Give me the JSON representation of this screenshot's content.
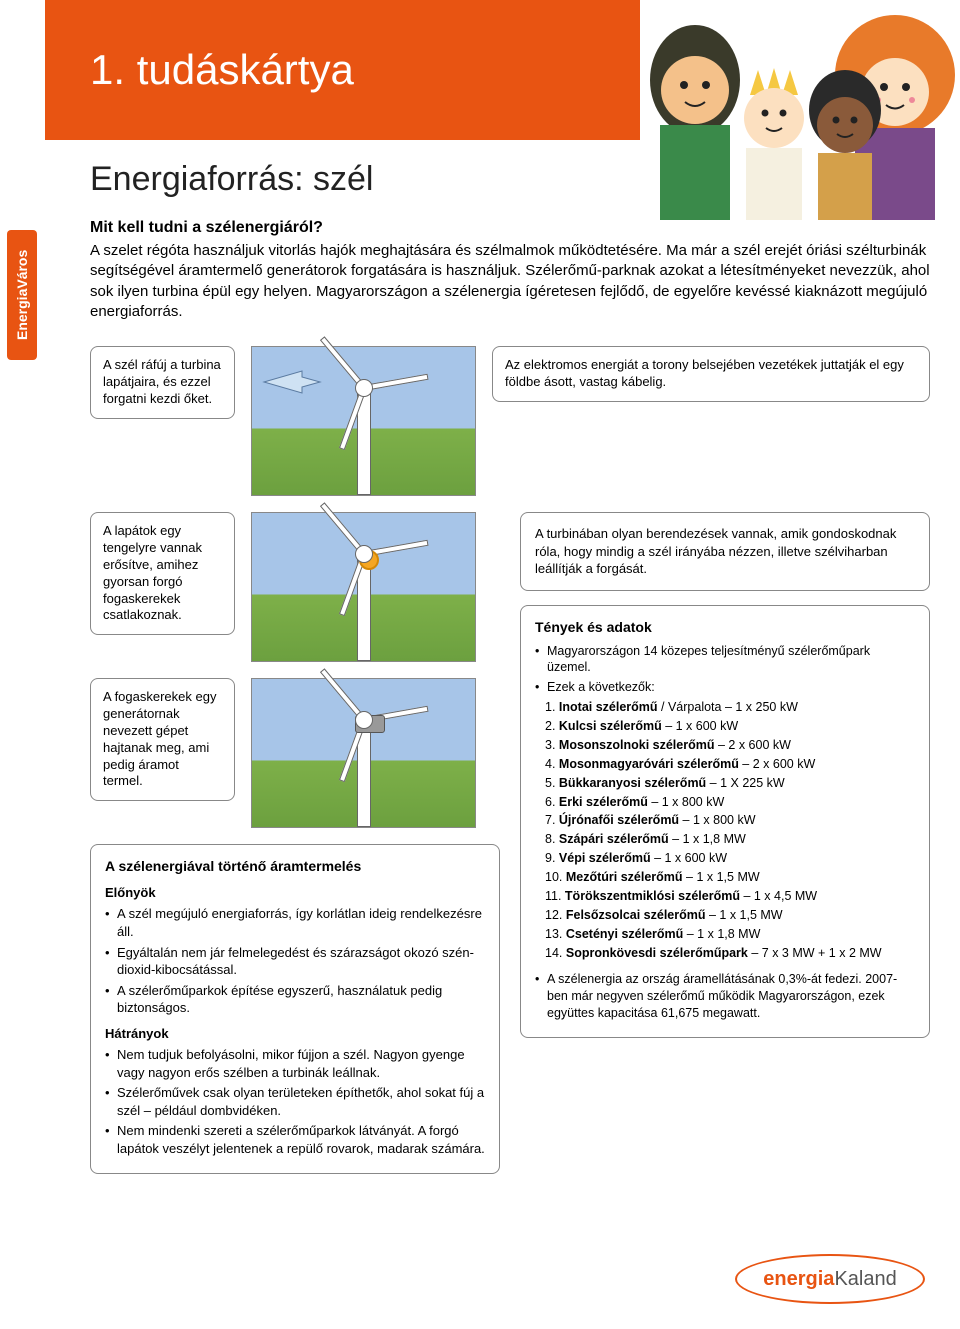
{
  "header": {
    "title": "1. tudáskártya"
  },
  "sideTab": "EnergiaVáros",
  "mainTitle": "Energiaforrás: szél",
  "leadQuestion": "Mit kell tudni a szélenergiáról?",
  "intro": "A szelet régóta használjuk vitorlás hajók meghajtására és szélmalmok működtetésére. Ma már a szél erejét óriási szélturbinák segítségével áramtermelő generátorok forgatására is használjuk. Szélerőmű-parknak azokat a létesítményeket nevezzük, ahol sok ilyen turbina épül egy helyen. Magyarországon a szélenergia ígéretesen fejlődő, de egyelőre kevéssé kiaknázott megújuló energiaforrás.",
  "callouts": {
    "c1_left": "A szél ráfúj a turbina lapátjaira, és ezzel forgatni kezdi őket.",
    "c1_right": "Az elektromos energiát a torony belsejében vezetékek juttatják el egy földbe ásott, vastag kábelig.",
    "c2_left": "A lapátok egy tengelyre vannak erősítve, amihez gyorsan forgó fogaskerekek csatlakoznak.",
    "c2_right": "A turbinában olyan berendezések vannak, amik gondoskodnak róla, hogy mindig a szél irányába nézzen, illetve szélviharban leállítják a forgását.",
    "c3_left": "A fogaskerekek egy generátornak nevezett gépet hajtanak meg, ami pedig áramot termel."
  },
  "prosConsTitle": "A szélenergiával történő áramtermelés",
  "prosLabel": "Előnyök",
  "pros": [
    "A szél megújuló energiaforrás, így korlátlan ideig rendelkezésre áll.",
    "Egyáltalán nem jár felmelegedést és szárazságot okozó szén-dioxid-kibocsátással.",
    "A szélerőműparkok építése egyszerű, használatuk pedig biztonságos."
  ],
  "consLabel": "Hátrányok",
  "cons": [
    "Nem tudjuk befolyásolni, mikor fújjon a szél. Nagyon gyenge vagy nagyon erős szélben a turbinák leállnak.",
    "Szélerőművek csak olyan területeken építhetők, ahol sokat fúj a szél – például dombvidéken.",
    "Nem mindenki szereti a szélerőműparkok látványát. A forgó lapátok veszélyt jelentenek a repülő rovarok, madarak számára."
  ],
  "factsTitle": "Tények és adatok",
  "facts": {
    "intro1": "Magyarországon 14 közepes teljesítményű szélerőműpark üzemel.",
    "intro2": "Ezek a következők:",
    "list": [
      {
        "n": "1.",
        "name": "Inotai szélerőmű",
        "rest": " / Várpalota – 1 x 250 kW"
      },
      {
        "n": "2.",
        "name": "Kulcsi szélerőmű",
        "rest": " – 1 x 600 kW"
      },
      {
        "n": "3.",
        "name": "Mosonszolnoki szélerőmű",
        "rest": " – 2 x 600 kW"
      },
      {
        "n": "4.",
        "name": "Mosonmagyaróvári szélerőmű",
        "rest": " – 2 x 600 kW"
      },
      {
        "n": "5.",
        "name": "Bükkaranyosi szélerőmű",
        "rest": " – 1 X 225 kW"
      },
      {
        "n": "6.",
        "name": "Erki szélerőmű",
        "rest": " – 1 x 800 kW"
      },
      {
        "n": "7.",
        "name": "Újrónafői szélerőmű",
        "rest": " – 1 x 800 kW"
      },
      {
        "n": "8.",
        "name": "Szápári szélerőmű",
        "rest": " – 1 x 1,8 MW"
      },
      {
        "n": "9.",
        "name": "Vépi szélerőmű",
        "rest": " – 1 x 600 kW"
      },
      {
        "n": "10.",
        "name": "Mezőtúri szélerőmű",
        "rest": " – 1 x 1,5 MW"
      },
      {
        "n": "11.",
        "name": "Törökszentmiklósi szélerőmű",
        "rest": " – 1 x 4,5 MW"
      },
      {
        "n": "12.",
        "name": "Felsőzsolcai szélerőmű",
        "rest": " – 1 x 1,5 MW"
      },
      {
        "n": "13.",
        "name": "Csetényi szélerőmű",
        "rest": " – 1 x 1,8 MW"
      },
      {
        "n": "14.",
        "name": "Sopronkövesdi szélerőműpark",
        "rest": " – 7 x 3 MW + 1 x 2 MW"
      }
    ],
    "footer": "A szélenergia az ország áramellátásának 0,3%-át fedezi. 2007-ben már negyven szélerőmű működik Magyarországon, ezek együttes kapacitása 61,675 megawatt."
  },
  "logo": {
    "brand": "energia",
    "suffix": "Kaland"
  },
  "colors": {
    "orange": "#e85412",
    "sky": "#a7c5e8",
    "grass": "#7eb049",
    "border": "#888888",
    "gear": "#f5a623"
  }
}
